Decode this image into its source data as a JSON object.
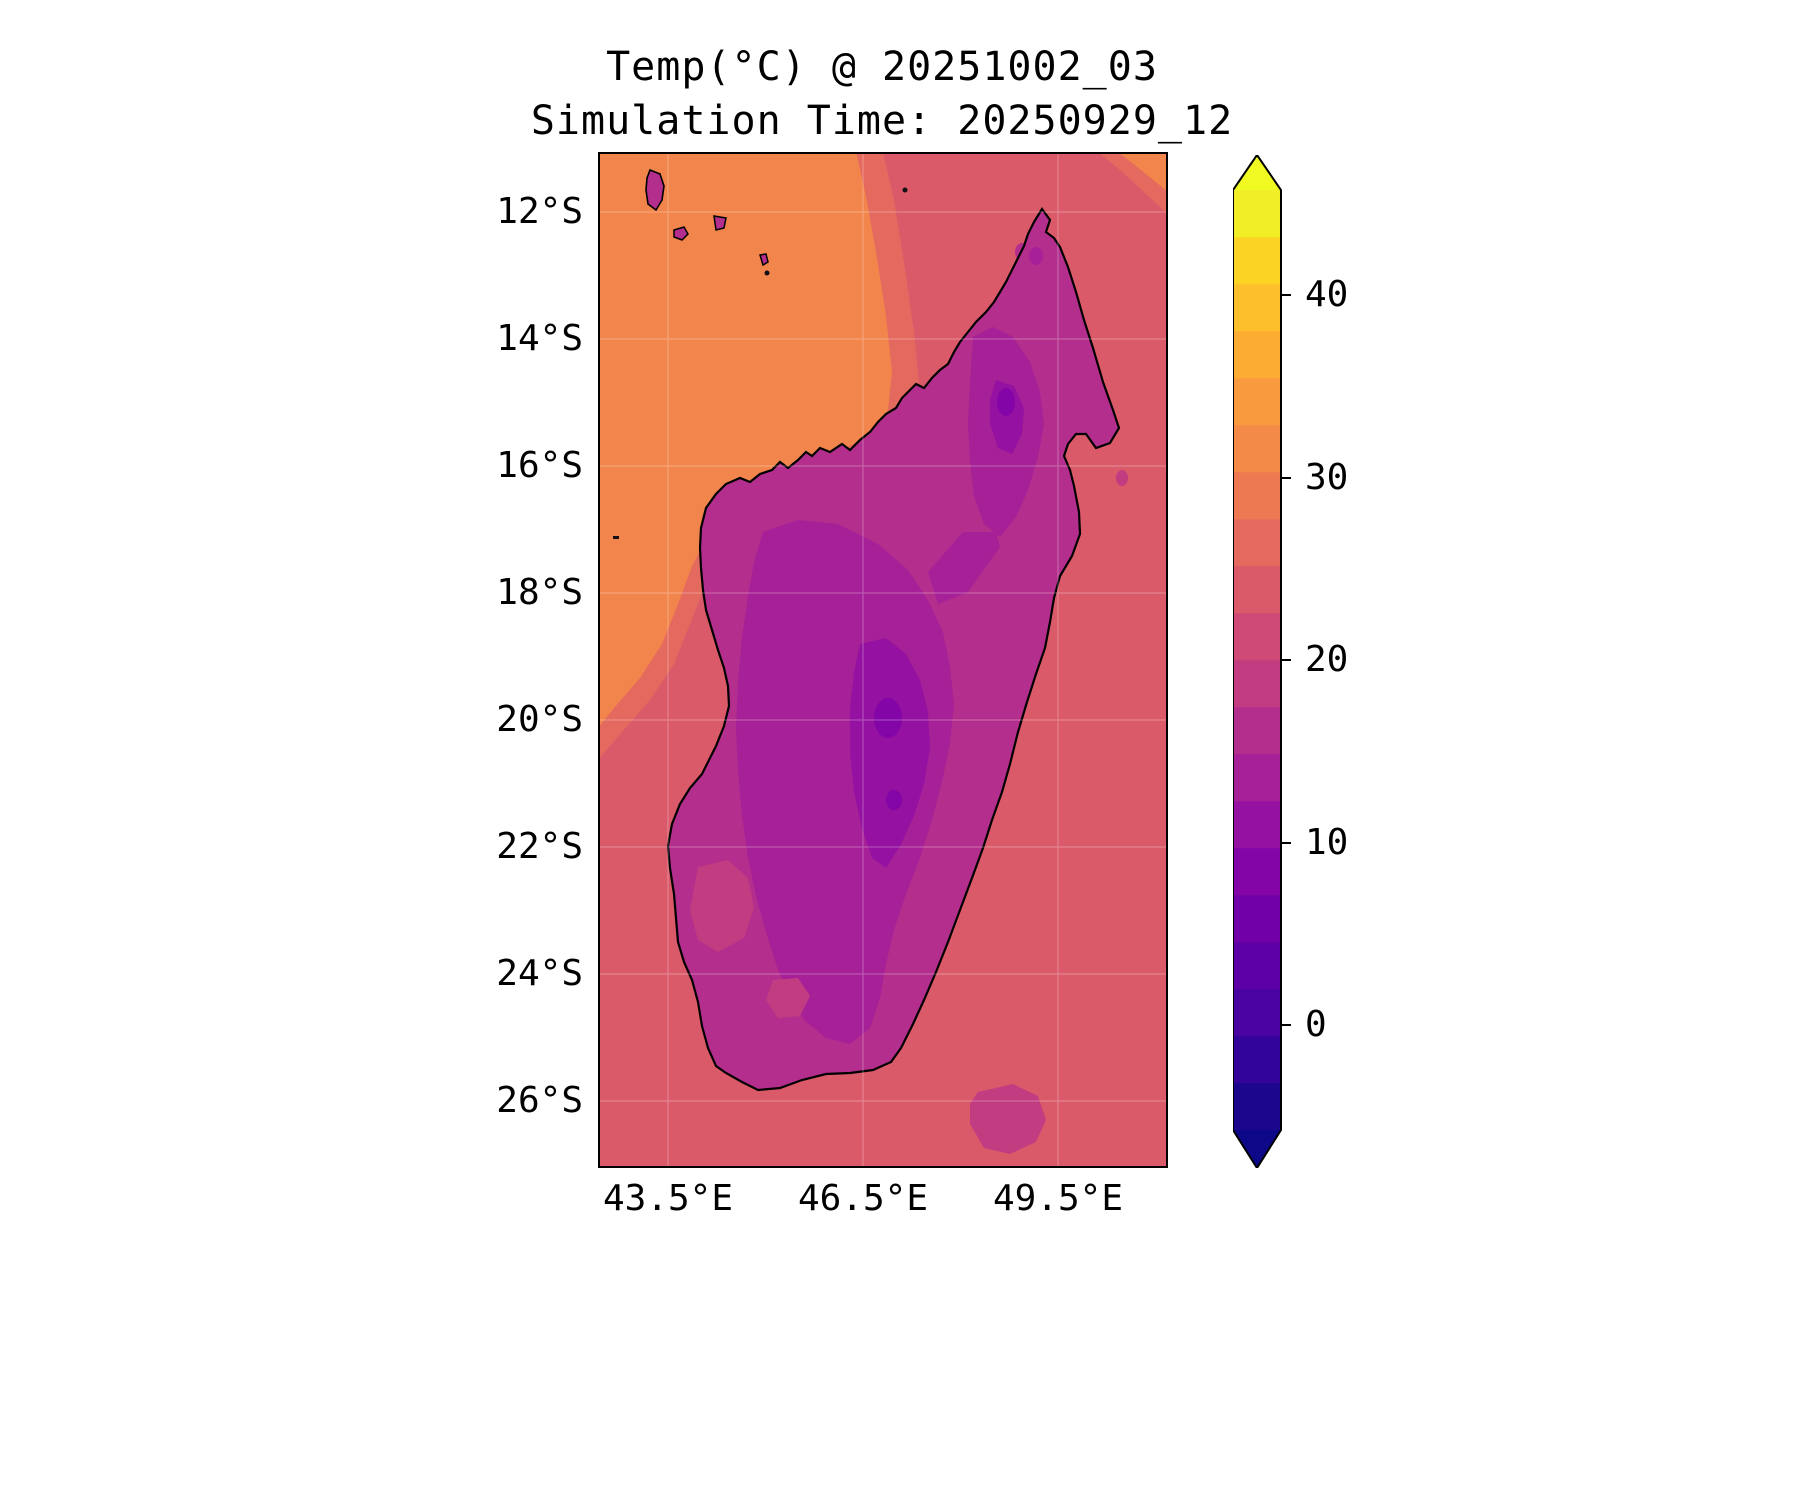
{
  "chart_data": {
    "type": "heatmap",
    "title": "Temp(°C) @ 20251002_03",
    "subtitle": "Simulation Time: 20250929_12",
    "variable": "Temp",
    "units": "°C",
    "valid_time_label": "20251002_03",
    "simulation_time_label": "20250929_12",
    "x_ticks": [
      "43.5°E",
      "46.5°E",
      "49.5°E"
    ],
    "y_ticks": [
      "12°S",
      "14°S",
      "16°S",
      "18°S",
      "20°S",
      "22°S",
      "24°S",
      "26°S"
    ],
    "x_range_deg_e": [
      42.4,
      51.3
    ],
    "y_range_deg_s": [
      11.1,
      27.1
    ],
    "grid": true,
    "colormap": "plasma",
    "colorbar": {
      "orientation": "vertical",
      "position": "right",
      "extend": "both",
      "tick_labels": [
        "40",
        "30",
        "20",
        "10",
        "0"
      ],
      "tick_values": [
        40,
        30,
        20,
        10,
        0
      ],
      "level_min": -5,
      "level_max": 45,
      "level_step": 2.5,
      "band_colors": [
        "#1b068d",
        "#32049a",
        "#4903a0",
        "#5d01a6",
        "#7100a8",
        "#8405a7",
        "#9511a1",
        "#a62098",
        "#b42e8d",
        "#c23c81",
        "#cf4a76",
        "#da5a6a",
        "#e4695e",
        "#ed7953",
        "#f38a47",
        "#f99a3e",
        "#fcac33",
        "#fdbf2b",
        "#fad324",
        "#f1ee27"
      ],
      "under_color": "#0d0887",
      "over_color": "#f0f921"
    },
    "region_colors": {
      "ocean": "#da5a6a",
      "warm_ocean_mid": "#e4695e",
      "warm_ocean": "#f2854b",
      "island_rim": "#b42e8d",
      "island_light": "#c23c81",
      "island_mid": "#a62098",
      "island_dark": "#9511a1",
      "island_coldest": "#8405a7",
      "se_ocean_patch": "#c23c81",
      "coastline": "#000000",
      "gridline": "#ffffff"
    },
    "regions": [
      {
        "name": "open_ocean",
        "approx_temp_c": 23
      },
      {
        "name": "northwest_ocean_warm",
        "approx_temp_c": 29
      },
      {
        "name": "island_lowlands",
        "approx_temp_c": 16
      },
      {
        "name": "central_highlands",
        "approx_temp_c": 12
      },
      {
        "name": "highland_cold_pockets",
        "approx_temp_c": 8
      },
      {
        "name": "southeast_ocean_cool_patch",
        "approx_temp_c": 18
      }
    ]
  }
}
